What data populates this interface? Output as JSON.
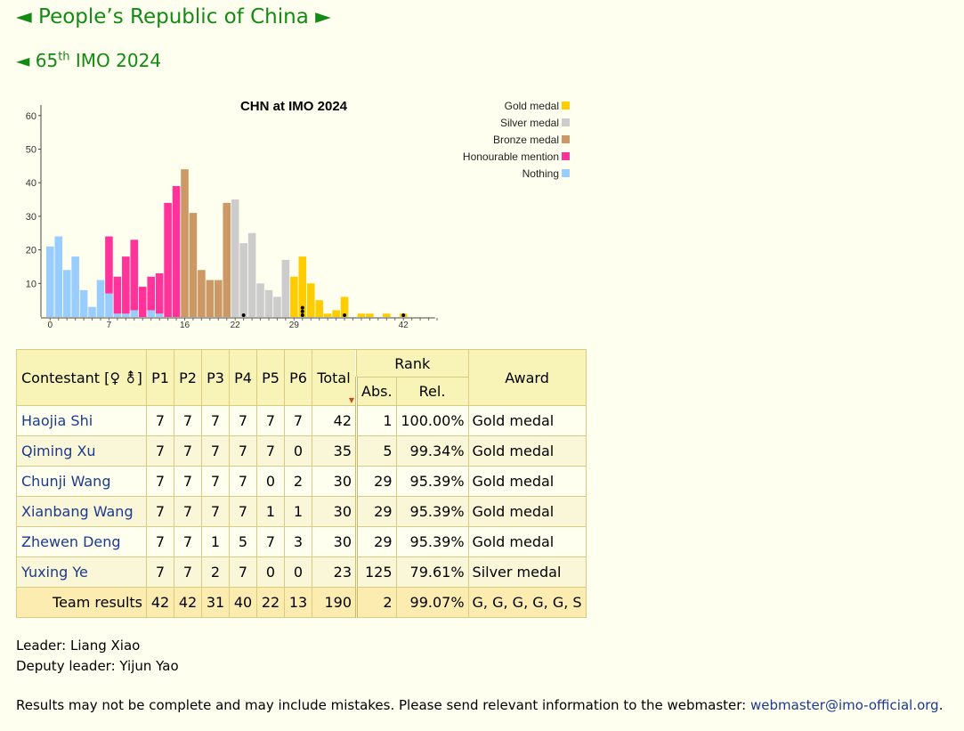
{
  "nav": {
    "country_prev": "◄",
    "country_title": "People’s Republic of China",
    "country_next": "►",
    "imo_prev": "◄",
    "imo_ordinal": "65",
    "imo_suffix": "th",
    "imo_title": "IMO 2024"
  },
  "chart_data": {
    "type": "bar",
    "title": "CHN at IMO 2024",
    "xlabel": "",
    "ylabel": "",
    "ylim": [
      0,
      65
    ],
    "y_ticks": [
      10,
      20,
      30,
      40,
      50,
      60
    ],
    "x_tick_labels": [
      0,
      7,
      16,
      22,
      29,
      42
    ],
    "x_range": [
      0,
      46
    ],
    "legend_position": "top-right",
    "legend": [
      {
        "name": "Gold medal",
        "color": "#ffcc00"
      },
      {
        "name": "Silver medal",
        "color": "#cccccc"
      },
      {
        "name": "Bronze medal",
        "color": "#cc9966"
      },
      {
        "name": "Honourable mention",
        "color": "#ff3399"
      },
      {
        "name": "Nothing",
        "color": "#99ccff"
      }
    ],
    "x": [
      0,
      1,
      2,
      3,
      4,
      5,
      6,
      7,
      8,
      9,
      10,
      11,
      12,
      13,
      14,
      15,
      16,
      17,
      18,
      19,
      20,
      21,
      22,
      23,
      24,
      25,
      26,
      27,
      28,
      29,
      30,
      31,
      32,
      33,
      34,
      35,
      36,
      37,
      38,
      39,
      40,
      41,
      42
    ],
    "series": [
      {
        "name": "Nothing",
        "values": [
          21,
          24,
          14,
          18,
          8,
          3,
          11,
          7,
          1,
          1,
          2,
          0,
          2,
          1,
          0,
          0,
          0,
          0,
          0,
          0,
          0,
          0,
          0,
          0,
          0,
          0,
          0,
          0,
          0,
          0,
          0,
          0,
          0,
          0,
          0,
          0,
          0,
          0,
          0,
          0,
          0,
          0,
          0
        ]
      },
      {
        "name": "Honourable mention",
        "values": [
          0,
          0,
          0,
          0,
          0,
          0,
          0,
          17,
          11,
          17,
          21,
          9,
          10,
          12,
          34,
          39,
          0,
          0,
          0,
          0,
          0,
          0,
          0,
          0,
          0,
          0,
          0,
          0,
          0,
          0,
          0,
          0,
          0,
          0,
          0,
          0,
          0,
          0,
          0,
          0,
          0,
          0,
          0
        ]
      },
      {
        "name": "Bronze medal",
        "values": [
          0,
          0,
          0,
          0,
          0,
          0,
          0,
          0,
          0,
          0,
          0,
          0,
          0,
          0,
          0,
          0,
          44,
          31,
          14,
          11,
          11,
          34,
          0,
          0,
          0,
          0,
          0,
          0,
          0,
          0,
          0,
          0,
          0,
          0,
          0,
          0,
          0,
          0,
          0,
          0,
          0,
          0,
          0
        ]
      },
      {
        "name": "Silver medal",
        "values": [
          0,
          0,
          0,
          0,
          0,
          0,
          0,
          0,
          0,
          0,
          0,
          0,
          0,
          0,
          0,
          0,
          0,
          0,
          0,
          0,
          0,
          0,
          35,
          22,
          25,
          10,
          8,
          6,
          17,
          0,
          0,
          0,
          0,
          0,
          0,
          0,
          0,
          0,
          0,
          0,
          0,
          0,
          0
        ]
      },
      {
        "name": "Gold medal",
        "values": [
          0,
          0,
          0,
          0,
          0,
          0,
          0,
          0,
          0,
          0,
          0,
          0,
          0,
          0,
          0,
          0,
          0,
          0,
          0,
          0,
          0,
          0,
          0,
          0,
          0,
          0,
          0,
          0,
          0,
          12,
          18,
          10,
          5,
          1,
          2,
          6,
          0,
          1,
          1,
          0,
          1,
          0,
          1
        ]
      }
    ],
    "team_markers": [
      {
        "x": 23,
        "count": 1
      },
      {
        "x": 30,
        "count": 3
      },
      {
        "x": 35,
        "count": 1
      },
      {
        "x": 42,
        "count": 1
      }
    ]
  },
  "table": {
    "headers": {
      "contestant": "Contestant [♀ ⚨]",
      "p": [
        "P1",
        "P2",
        "P3",
        "P4",
        "P5",
        "P6"
      ],
      "total": "Total",
      "rank": "Rank",
      "abs": "Abs.",
      "rel": "Rel.",
      "award": "Award"
    },
    "rows": [
      {
        "name": "Haojia Shi",
        "scores": [
          "7",
          "7",
          "7",
          "7",
          "7",
          "7"
        ],
        "total": "42",
        "abs": "1",
        "rel": "100.00%",
        "award": "Gold medal"
      },
      {
        "name": "Qiming Xu",
        "scores": [
          "7",
          "7",
          "7",
          "7",
          "7",
          "0"
        ],
        "total": "35",
        "abs": "5",
        "rel": "99.34%",
        "award": "Gold medal"
      },
      {
        "name": "Chunji Wang",
        "scores": [
          "7",
          "7",
          "7",
          "7",
          "0",
          "2"
        ],
        "total": "30",
        "abs": "29",
        "rel": "95.39%",
        "award": "Gold medal"
      },
      {
        "name": "Xianbang Wang",
        "scores": [
          "7",
          "7",
          "7",
          "7",
          "1",
          "1"
        ],
        "total": "30",
        "abs": "29",
        "rel": "95.39%",
        "award": "Gold medal"
      },
      {
        "name": "Zhewen Deng",
        "scores": [
          "7",
          "7",
          "1",
          "5",
          "7",
          "3"
        ],
        "total": "30",
        "abs": "29",
        "rel": "95.39%",
        "award": "Gold medal"
      },
      {
        "name": "Yuxing Ye",
        "scores": [
          "7",
          "7",
          "2",
          "7",
          "0",
          "0"
        ],
        "total": "23",
        "abs": "125",
        "rel": "79.61%",
        "award": "Silver medal"
      }
    ],
    "team": {
      "label": "Team results",
      "scores": [
        "42",
        "42",
        "31",
        "40",
        "22",
        "13"
      ],
      "total": "190",
      "abs": "2",
      "rel": "99.07%",
      "award": "G, G, G, G, G, S"
    }
  },
  "leader": {
    "label": "Leader:",
    "name": "Liang Xiao"
  },
  "deputy": {
    "label": "Deputy leader:",
    "name": "Yijun Yao"
  },
  "note": {
    "text": "Results may not be complete and may include mistakes. Please send relevant information to the webmaster:",
    "email": "webmaster@imo-official.org",
    "end": "."
  }
}
